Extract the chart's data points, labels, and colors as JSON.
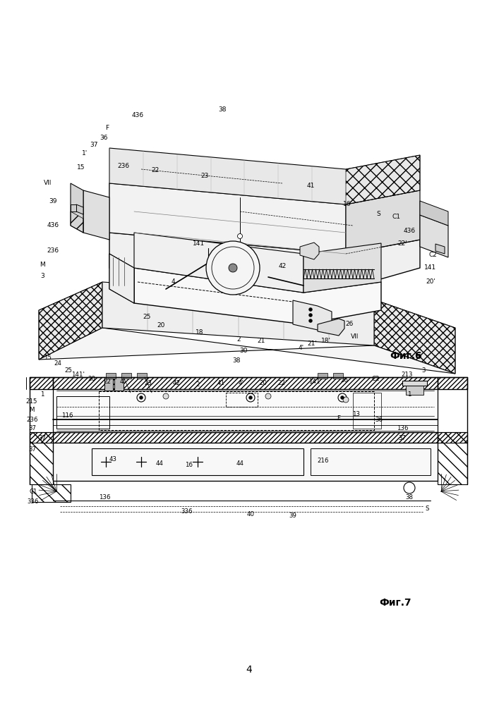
{
  "background_color": "#ffffff",
  "fig_width": 7.07,
  "fig_height": 10.0,
  "line_color": "#000000",
  "line_width": 0.8,
  "fig6_label": "Фиг.6",
  "fig7_label": "Фиг.7",
  "page_number": "4"
}
